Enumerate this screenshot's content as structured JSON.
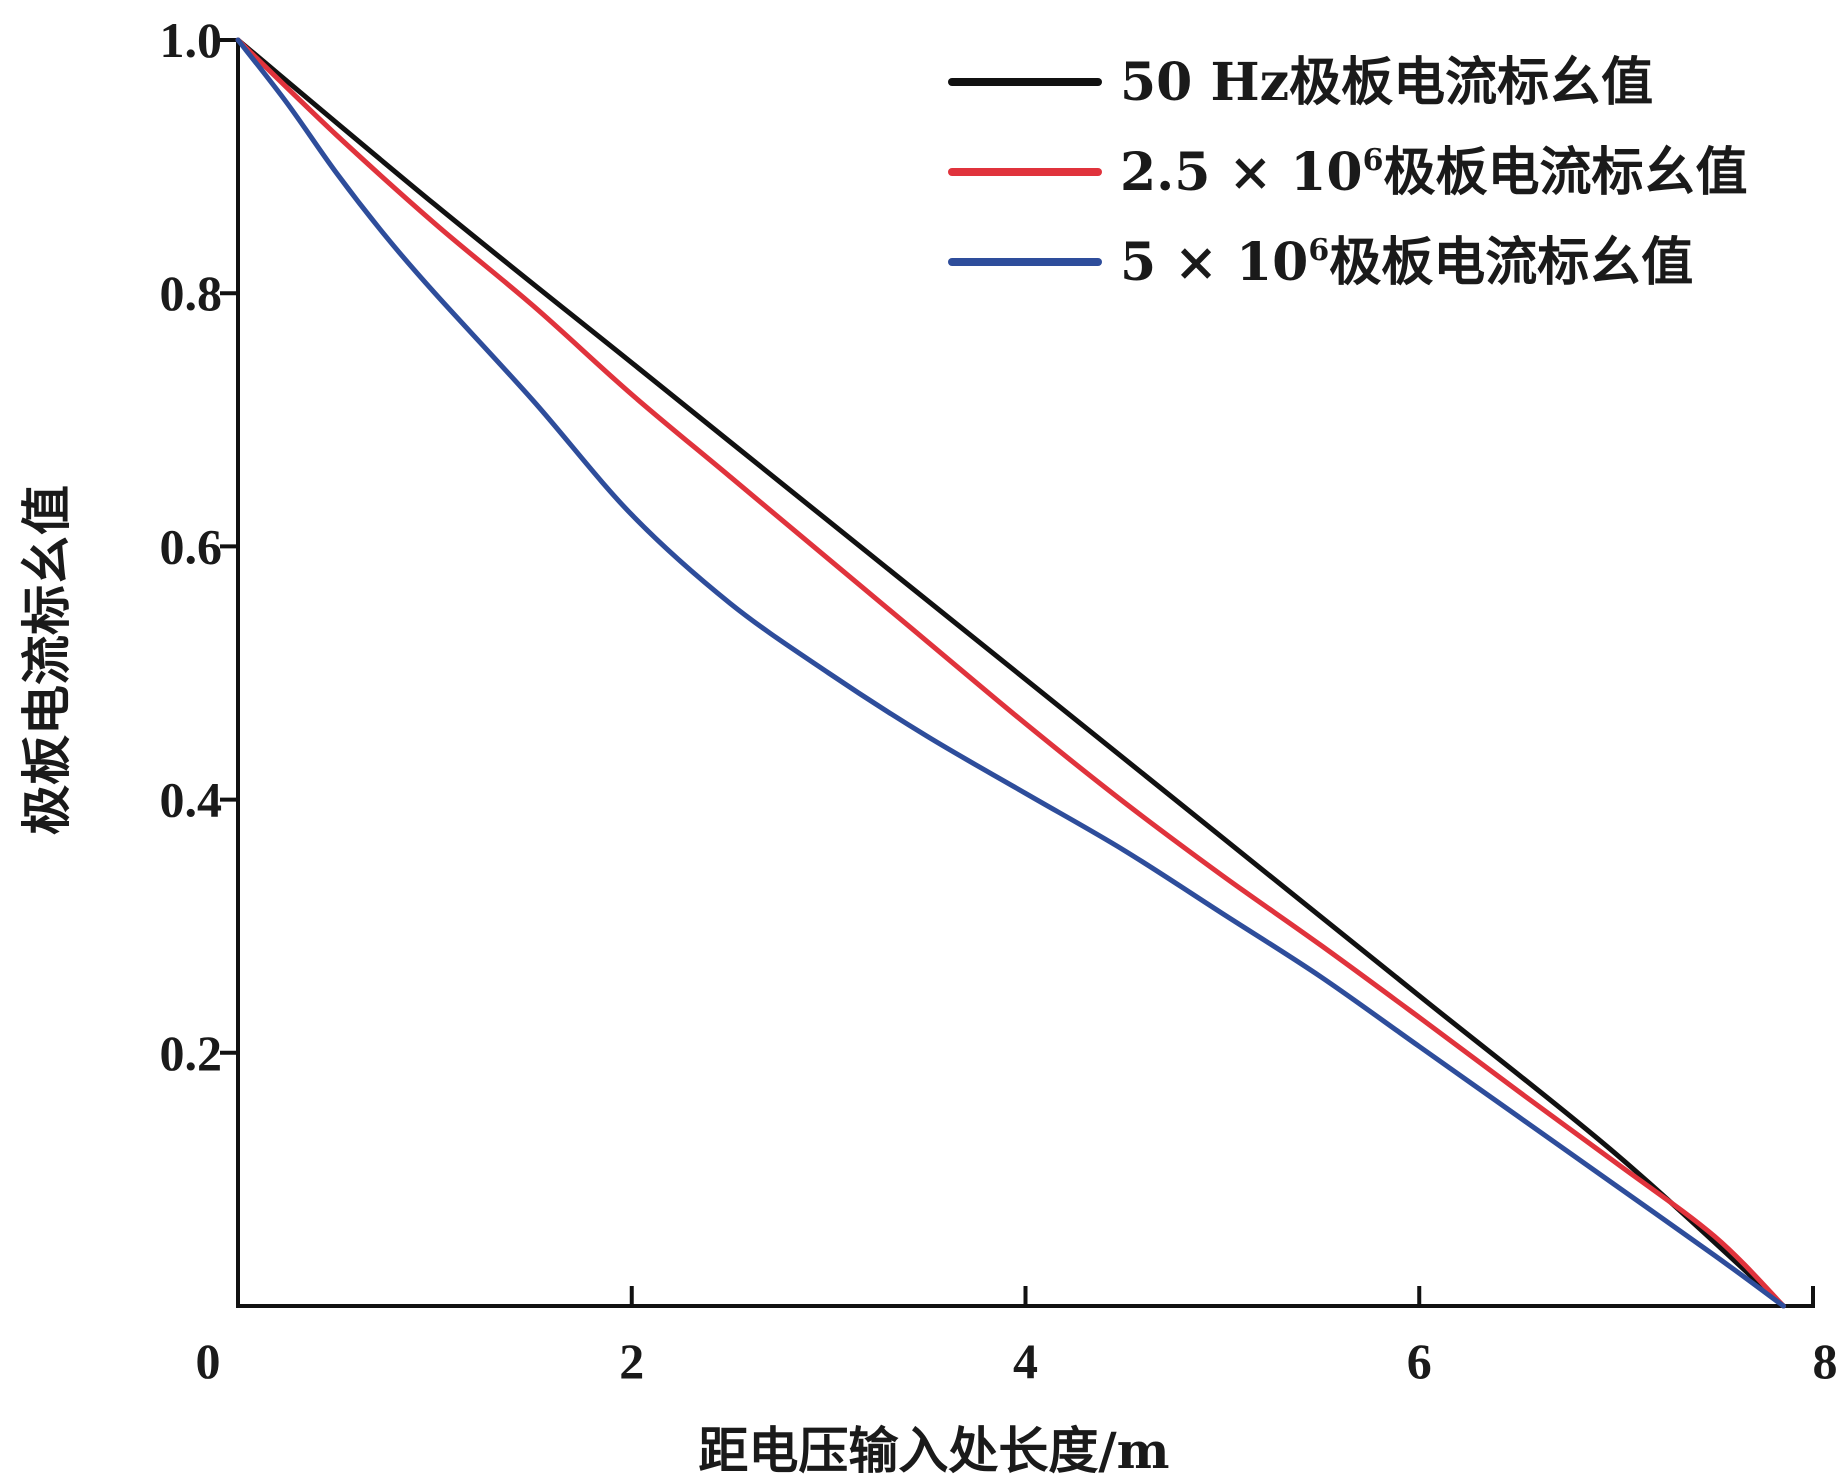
{
  "chart_data": {
    "type": "line",
    "xlabel": "距电压输入处长度/m",
    "ylabel": "极板电流标幺值",
    "xlim": [
      0,
      8
    ],
    "ylim": [
      0,
      1.0
    ],
    "x_ticks": [
      "0",
      "2",
      "4",
      "6",
      "8"
    ],
    "y_ticks": [
      "1.0",
      "0.8",
      "0.6",
      "0.4",
      "0.2"
    ],
    "grid": false,
    "legend_position": "top-right",
    "series": [
      {
        "name": "50 Hz极板电流标幺值",
        "legend": {
          "main": "50 Hz极板电流标幺值",
          "sup": "",
          "tail": ""
        },
        "color": "#111111",
        "x": [
          0,
          1,
          2,
          3,
          4,
          5,
          6,
          7,
          7.85
        ],
        "y": [
          1.0,
          0.87,
          0.745,
          0.62,
          0.495,
          0.37,
          0.245,
          0.12,
          0.0
        ]
      },
      {
        "name": "2.5×10⁶极板电流标幺值",
        "legend": {
          "main": "2.5 × 10",
          "sup": "6",
          "tail": "极板电流标幺值"
        },
        "color": "#e0333c",
        "x": [
          0,
          0.5,
          1,
          1.5,
          2,
          2.5,
          3,
          3.5,
          4,
          4.5,
          5,
          5.5,
          6,
          6.5,
          7,
          7.5,
          7.85
        ],
        "y": [
          1.0,
          0.925,
          0.855,
          0.79,
          0.72,
          0.655,
          0.59,
          0.525,
          0.46,
          0.398,
          0.34,
          0.285,
          0.228,
          0.17,
          0.113,
          0.055,
          0.0
        ]
      },
      {
        "name": "5×10⁶极板电流标幺值",
        "legend": {
          "main": "5 × 10",
          "sup": "6",
          "tail": "极板电流标幺值"
        },
        "color": "#2e4d9b",
        "x": [
          0,
          0.25,
          0.5,
          0.75,
          1,
          1.5,
          2,
          2.5,
          3,
          3.5,
          4,
          4.5,
          5,
          5.5,
          6,
          6.5,
          7,
          7.5,
          7.85
        ],
        "y": [
          1.0,
          0.95,
          0.895,
          0.845,
          0.8,
          0.715,
          0.625,
          0.555,
          0.5,
          0.45,
          0.405,
          0.36,
          0.31,
          0.26,
          0.205,
          0.15,
          0.095,
          0.04,
          0.0
        ]
      }
    ]
  }
}
